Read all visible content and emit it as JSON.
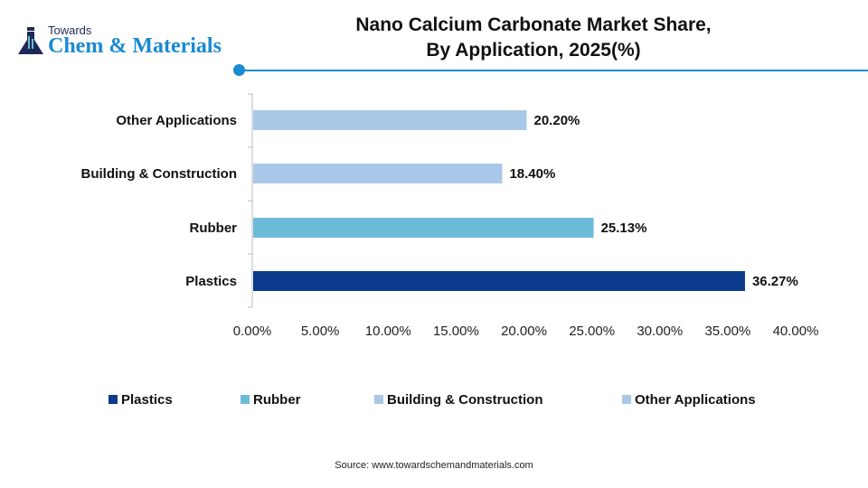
{
  "logo": {
    "line1": "Towards",
    "line2": "Chem & Materials"
  },
  "title_lines": [
    "Nano Calcium Carbonate Market Share,",
    "By Application, 2025(%)"
  ],
  "source": "Source: www.towardschemandmaterials.com",
  "chart_data": {
    "type": "bar",
    "orientation": "horizontal",
    "title": "Nano Calcium Carbonate Market Share, By Application, 2025(%)",
    "categories": [
      "Plastics",
      "Rubber",
      "Building & Construction",
      "Other Applications"
    ],
    "values": [
      36.27,
      25.13,
      18.4,
      20.2
    ],
    "data_labels": [
      "36.27%",
      "25.13%",
      "18.40%",
      "20.20%"
    ],
    "colors": [
      "#0b3a8c",
      "#6cbcd9",
      "#a9c8e7",
      "#a9c8e7"
    ],
    "xlim": [
      0,
      40
    ],
    "x_ticks": [
      "0.00%",
      "5.00%",
      "10.00%",
      "15.00%",
      "20.00%",
      "25.00%",
      "30.00%",
      "35.00%",
      "40.00%"
    ],
    "grid": false,
    "legend": "bottom"
  }
}
